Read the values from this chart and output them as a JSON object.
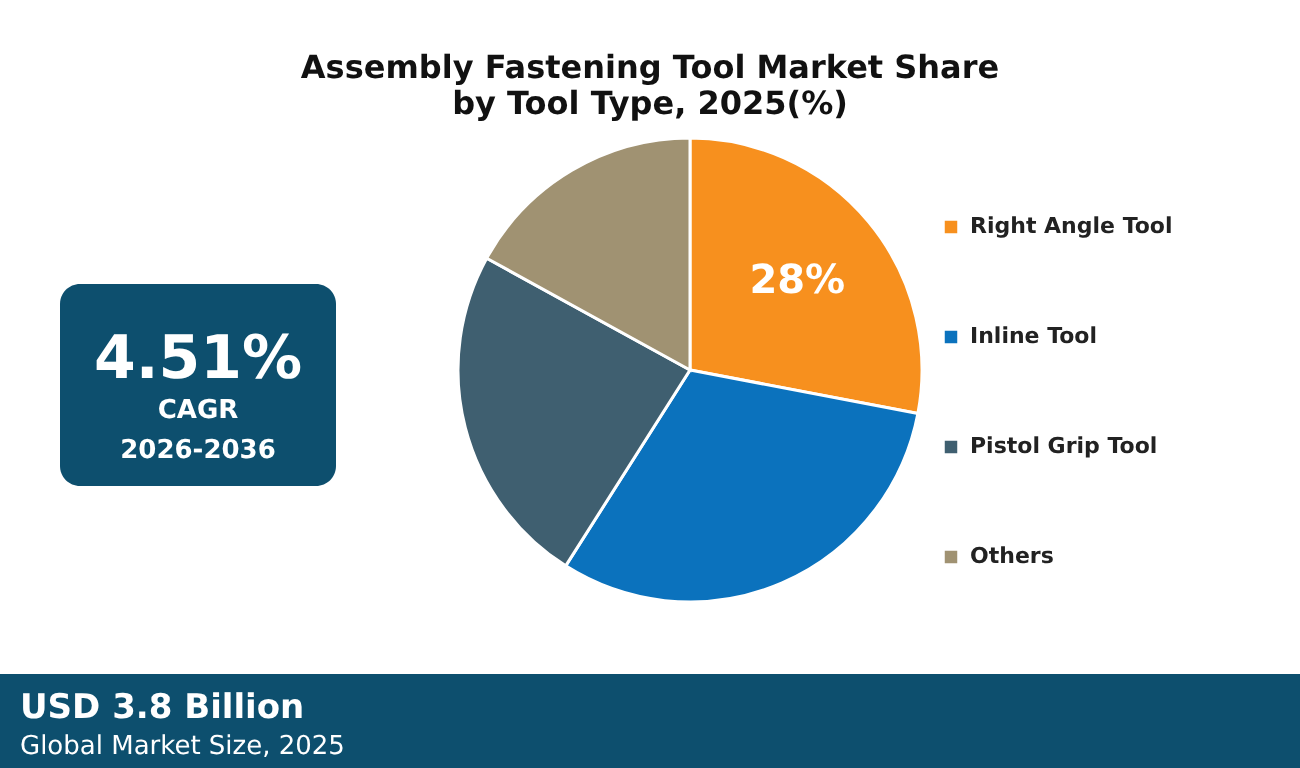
{
  "chart_data": {
    "type": "pie",
    "title": "Assembly Fastening Tool Market Share\nby Tool Type, 2025(%)",
    "categories": [
      "Right Angle Tool",
      "Inline Tool",
      "Pistol Grip Tool",
      "Others"
    ],
    "values": [
      28,
      31,
      24,
      17
    ],
    "colors": [
      "#f7901e",
      "#0b72bd",
      "#3f5f70",
      "#a09272"
    ],
    "value_labels": [
      "28%",
      null,
      null,
      null
    ],
    "legend": "right",
    "annotations": [
      "4.51%",
      "CAGR",
      "2026-2036",
      "USD 3.8 Billion",
      "Global Market Size, 2025"
    ]
  }
}
